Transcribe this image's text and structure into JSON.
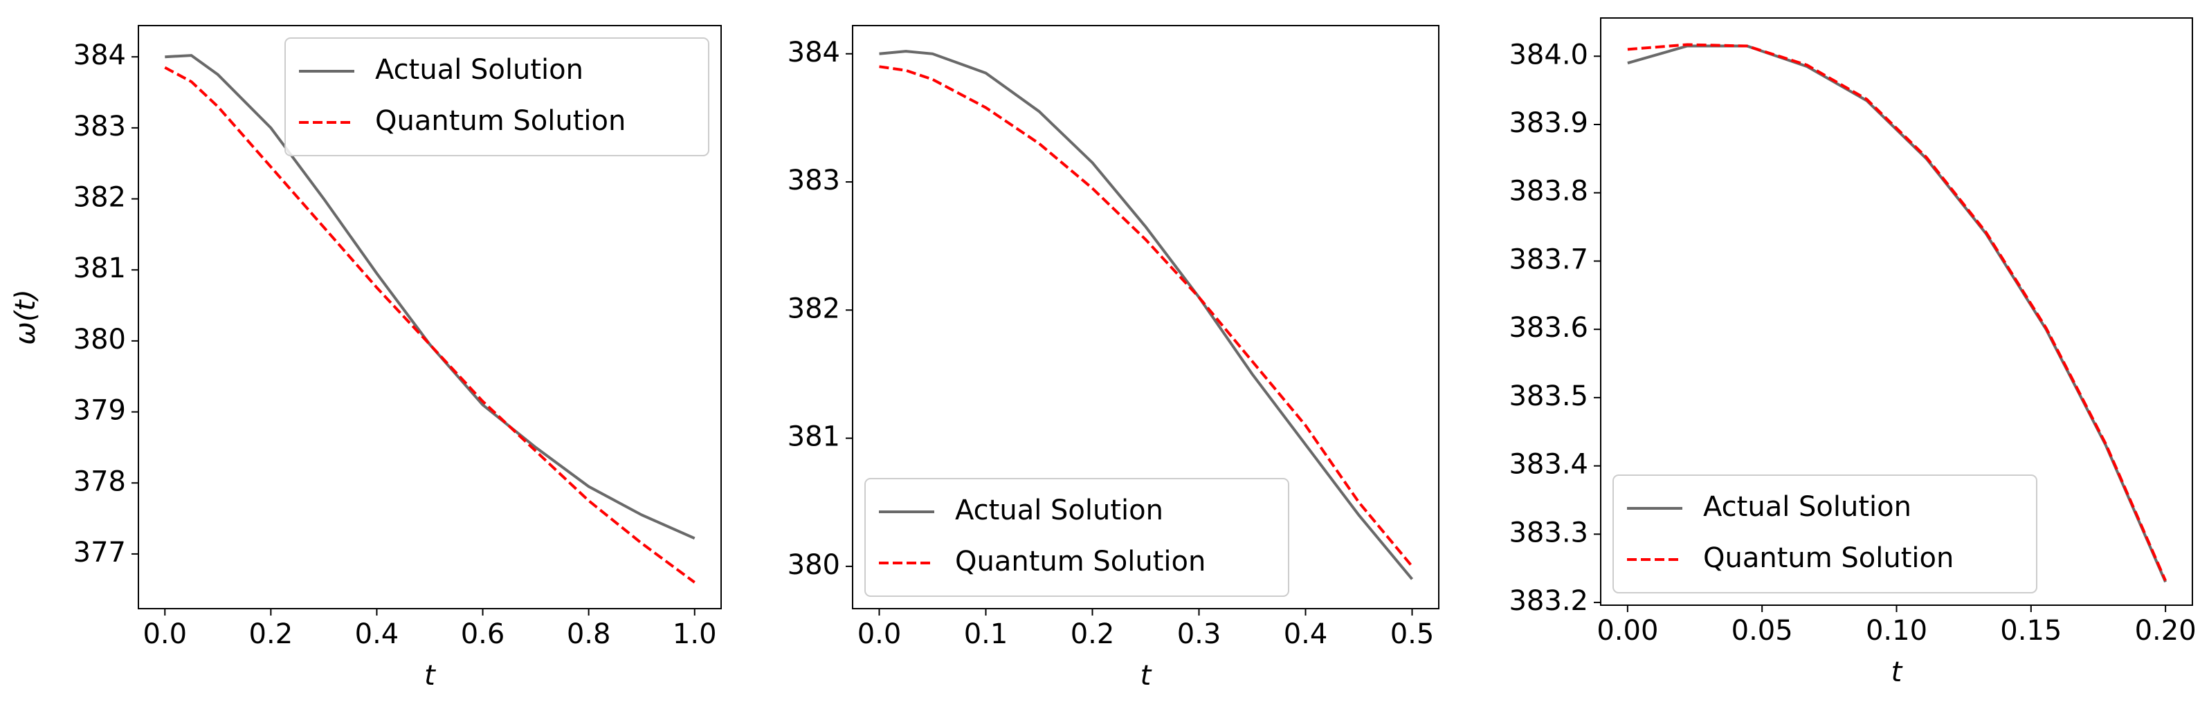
{
  "chart_data": [
    {
      "type": "line",
      "xlabel": "t",
      "ylabel": "ω(t)",
      "legend": "upper right",
      "x": [
        0,
        0.05,
        0.1,
        0.2,
        0.3,
        0.4,
        0.5,
        0.6,
        0.7,
        0.8,
        0.9,
        1.0
      ],
      "series": [
        {
          "name": "Actual Solution",
          "color": "#696969",
          "style": "solid",
          "values": [
            384.0,
            384.02,
            383.75,
            383.0,
            382.0,
            380.95,
            379.95,
            379.1,
            378.5,
            377.95,
            377.55,
            377.22
          ]
        },
        {
          "name": "Quantum Solution",
          "color": "#ff0000",
          "style": "dashed",
          "values": [
            383.85,
            383.65,
            383.3,
            382.45,
            381.6,
            380.75,
            379.95,
            379.15,
            378.45,
            377.75,
            377.15,
            376.6
          ]
        }
      ],
      "xlim": [
        -0.05,
        1.05
      ],
      "ylim": [
        376.23,
        384.44
      ],
      "xticks": [
        {
          "value": 0,
          "label": "0.0"
        },
        0.2,
        0.4,
        0.6,
        0.8,
        {
          "value": 1,
          "label": "1.0"
        }
      ],
      "yticks": [
        377,
        378,
        379,
        380,
        381,
        382,
        383,
        384
      ]
    },
    {
      "type": "line",
      "xlabel": "t",
      "legend": "lower left",
      "x": [
        0,
        0.025,
        0.05,
        0.1,
        0.15,
        0.2,
        0.25,
        0.3,
        0.35,
        0.4,
        0.45,
        0.5
      ],
      "series": [
        {
          "name": "Actual Solution",
          "color": "#696969",
          "style": "solid",
          "values": [
            384.0,
            384.02,
            384.0,
            383.85,
            383.55,
            383.15,
            382.65,
            382.1,
            381.5,
            380.95,
            380.4,
            379.9
          ]
        },
        {
          "name": "Quantum Solution",
          "color": "#ff0000",
          "style": "dashed",
          "values": [
            383.9,
            383.87,
            383.8,
            383.58,
            383.3,
            382.95,
            382.55,
            382.1,
            381.6,
            381.1,
            380.5,
            380.0
          ]
        }
      ],
      "xlim": [
        -0.025,
        0.525
      ],
      "ylim": [
        379.67,
        384.22
      ],
      "xticks": [
        {
          "value": 0,
          "label": "0.0"
        },
        0.1,
        0.2,
        0.3,
        0.4,
        0.5
      ],
      "yticks": [
        380,
        381,
        382,
        383,
        384
      ]
    },
    {
      "type": "line",
      "xlabel": "t",
      "legend": "lower left",
      "x": [
        0,
        0.0222,
        0.0444,
        0.0667,
        0.0889,
        0.1111,
        0.1333,
        0.1556,
        0.1778,
        0.2
      ],
      "series": [
        {
          "name": "Actual Solution",
          "color": "#696969",
          "style": "solid",
          "values": [
            383.99,
            384.015,
            384.015,
            383.985,
            383.935,
            383.85,
            383.74,
            383.6,
            383.43,
            383.23
          ]
        },
        {
          "name": "Quantum Solution",
          "color": "#ff0000",
          "style": "dashed",
          "values": [
            384.01,
            384.017,
            384.015,
            383.987,
            383.937,
            383.852,
            383.742,
            383.602,
            383.432,
            383.232
          ]
        }
      ],
      "xlim": [
        -0.01,
        0.21
      ],
      "ylim": [
        383.196,
        384.056
      ],
      "xticks": [
        {
          "value": 0,
          "label": "0.00"
        },
        0.05,
        {
          "value": 0.1,
          "label": "0.10"
        },
        0.15,
        {
          "value": 0.2,
          "label": "0.20"
        }
      ],
      "yticks": [
        383.2,
        383.3,
        383.4,
        383.5,
        383.6,
        383.7,
        383.8,
        383.9,
        {
          "value": 384,
          "label": "384.0"
        }
      ]
    }
  ]
}
